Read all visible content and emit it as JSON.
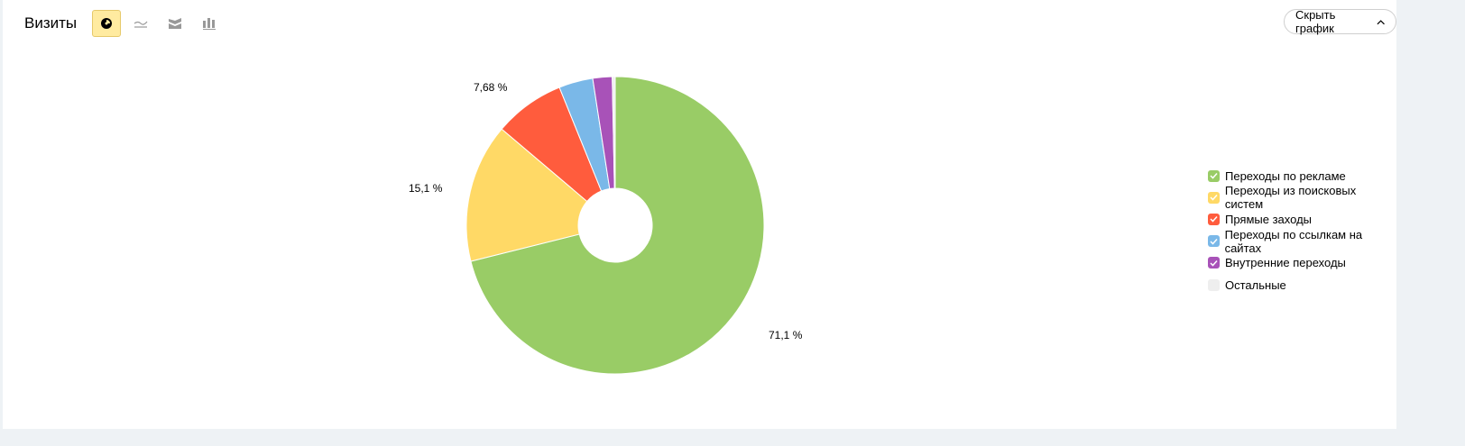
{
  "header": {
    "title": "Визиты",
    "hide_chart_label": "Скрыть график",
    "chart_types": [
      {
        "icon": "pie-chart-icon",
        "active": true
      },
      {
        "icon": "line-chart-icon",
        "active": false
      },
      {
        "icon": "area-chart-icon",
        "active": false
      },
      {
        "icon": "bar-chart-icon",
        "active": false
      }
    ]
  },
  "chart_data": {
    "type": "pie",
    "donut": true,
    "categories": [
      "Переходы по рекламе",
      "Переходы из поисковых систем",
      "Прямые заходы",
      "Переходы по ссылкам на сайтах",
      "Внутренние переходы",
      "Остальные"
    ],
    "values": [
      71.1,
      15.1,
      7.68,
      3.7,
      2.1,
      0.32
    ],
    "colors": [
      "#99cc66",
      "#ffd966",
      "#ff5c3d",
      "#7ab8e8",
      "#a852b8",
      "#eeeeee"
    ],
    "data_labels": [
      "71,1 %",
      "15,1 %",
      "7,68 %",
      "",
      "",
      ""
    ],
    "legend_checked": [
      true,
      true,
      true,
      true,
      true,
      false
    ],
    "legend_placement": "right"
  }
}
